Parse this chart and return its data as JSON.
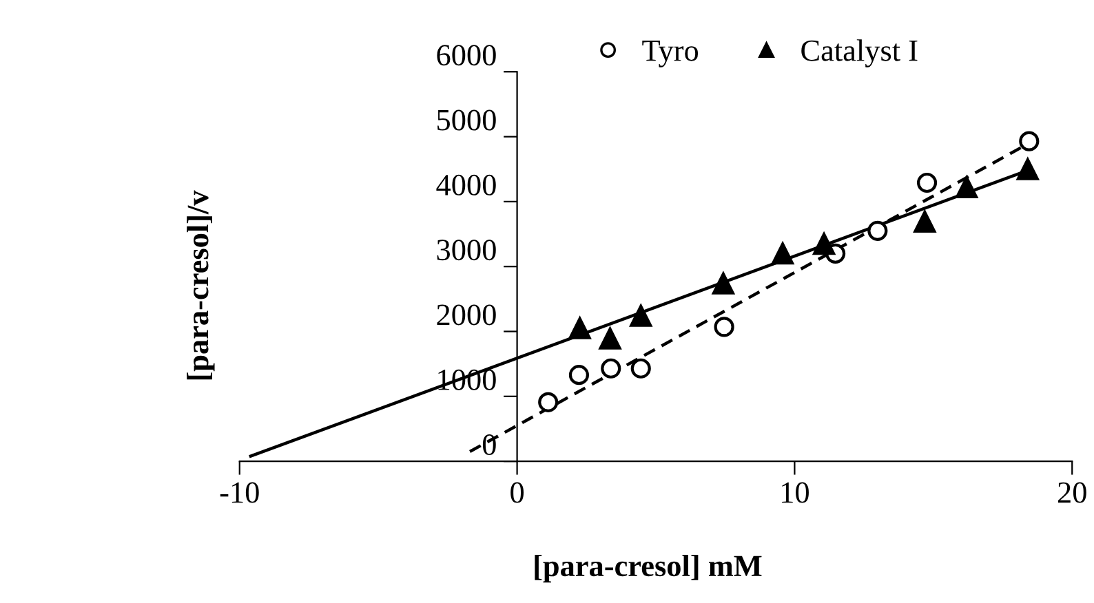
{
  "chart_data": {
    "type": "scatter",
    "xlabel": "[para-cresol] mM",
    "ylabel": "[para-cresol]/v",
    "xlim": [
      -10,
      20
    ],
    "ylim": [
      0,
      6000
    ],
    "xticks": [
      -10,
      0,
      10,
      20
    ],
    "yticks": [
      0,
      1000,
      2000,
      3000,
      4000,
      5000,
      6000
    ],
    "grid": false,
    "legend": "top right",
    "series": [
      {
        "name": "Tyro",
        "color": "#000000",
        "marker": "circle",
        "x": [
          1.12,
          2.23,
          3.38,
          4.46,
          7.46,
          11.47,
          12.99,
          14.77,
          18.45
        ],
        "values": [
          910,
          1330,
          1430,
          1430,
          2070,
          3200,
          3550,
          4290,
          4930
        ]
      },
      {
        "name": "Catalyst I",
        "color": "#000000",
        "marker": "triangle",
        "x": [
          2.26,
          3.35,
          4.46,
          7.43,
          9.57,
          11.06,
          14.69,
          16.2,
          18.4
        ],
        "values": [
          2050,
          1890,
          2240,
          2740,
          3200,
          3350,
          3690,
          4220,
          4500
        ]
      },
      {
        "type": "line",
        "color": "#000000",
        "line_style": "dashed",
        "marker": "none",
        "x": [
          -1.7,
          18.45
        ],
        "values": [
          150,
          4900
        ]
      },
      {
        "type": "line",
        "color": "#000000",
        "line_style": "solid",
        "marker": "none",
        "x": [
          -9.6,
          18.4
        ],
        "values": [
          80,
          4480
        ]
      }
    ]
  }
}
